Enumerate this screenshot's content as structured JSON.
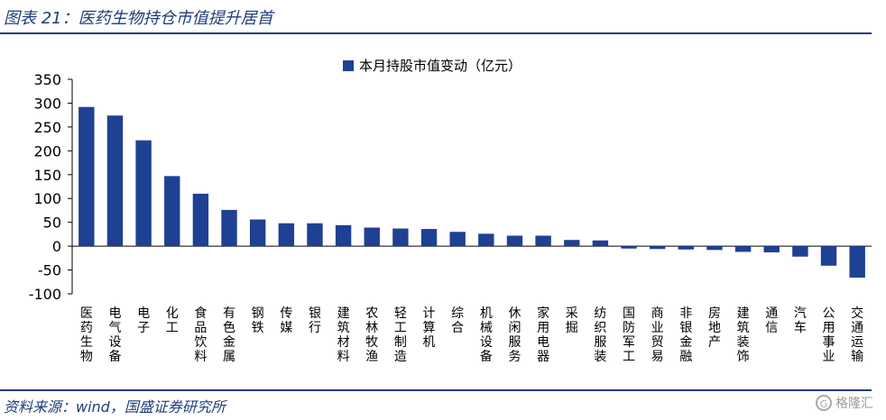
{
  "figure_title": "图表 21：医药生物持仓市值提升居首",
  "source_text": "资料来源：wind，国盛证券研究所",
  "watermark_text": "格隆汇",
  "colors": {
    "bar": "#1f4194",
    "title": "#1f3c7a",
    "rule": "#1f3c7a"
  },
  "chart_data": {
    "type": "bar",
    "categories": [
      "医药生物",
      "电气设备",
      "电子",
      "化工",
      "食品饮料",
      "有色金属",
      "钢铁",
      "传媒",
      "银行",
      "建筑材料",
      "农林牧渔",
      "轻工制造",
      "计算机",
      "综合",
      "机械设备",
      "休闲服务",
      "家用电器",
      "采掘",
      "纺织服装",
      "国防军工",
      "商业贸易",
      "非银金融",
      "房地产",
      "建筑装饰",
      "通信",
      "汽车",
      "公用事业",
      "交通运输"
    ],
    "series": [
      {
        "name": "本月持股市值变动（亿元）",
        "values": [
          292,
          274,
          222,
          147,
          110,
          76,
          56,
          48,
          48,
          44,
          39,
          37,
          36,
          30,
          26,
          22,
          22,
          13,
          12,
          -5,
          -6,
          -7,
          -8,
          -12,
          -13,
          -22,
          -41,
          -66
        ]
      }
    ],
    "ylim": [
      -100,
      350
    ],
    "yticks": [
      -100,
      -50,
      0,
      50,
      100,
      150,
      200,
      250,
      300,
      350
    ],
    "grid": false,
    "legend_position": "top-center"
  }
}
